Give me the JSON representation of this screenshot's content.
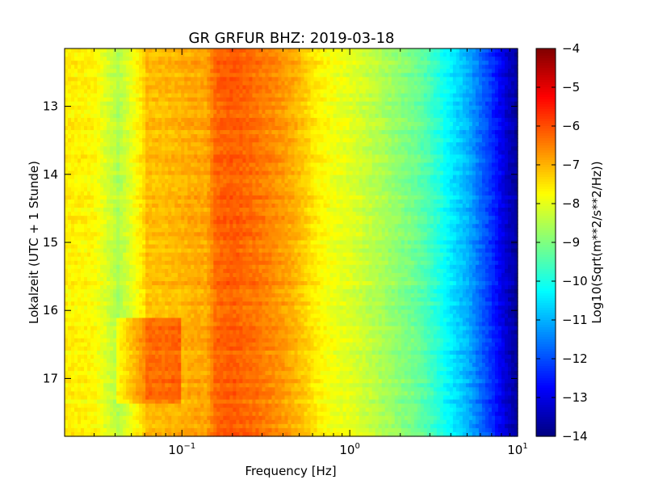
{
  "chart_data": {
    "type": "heatmap",
    "title": "GR GRFUR BHZ: 2019-03-18",
    "xlabel": "Frequency [Hz]",
    "ylabel": "Lokalzeit (UTC + 1 Stunde)",
    "x_scale": "log",
    "xlim": [
      0.02,
      10
    ],
    "x_ticks": [
      {
        "value": 0.1,
        "base": "10",
        "exp": "−1"
      },
      {
        "value": 1,
        "base": "10",
        "exp": "0"
      },
      {
        "value": 10,
        "base": "10",
        "exp": "1"
      }
    ],
    "ylim": [
      12.15,
      17.85
    ],
    "y_ticks": [
      13,
      14,
      15,
      16,
      17
    ],
    "y_inverted": true,
    "colorbar": {
      "label": "Log10(Sqrt(m**2/s**2/Hz))",
      "colormap": "jet",
      "range": [
        -14,
        -4
      ],
      "ticks": [
        -4,
        -5,
        -6,
        -7,
        -8,
        -9,
        -10,
        -11,
        -12,
        -13,
        -14
      ]
    },
    "spectrum_profile": {
      "description_values": "approximate mean PSD level (Log10 units) per frequency band",
      "freq_hz": [
        0.02,
        0.03,
        0.04,
        0.06,
        0.08,
        0.1,
        0.12,
        0.14,
        0.16,
        0.2,
        0.25,
        0.3,
        0.4,
        0.5,
        0.6,
        0.7,
        0.8,
        1.0,
        1.3,
        1.6,
        2.0,
        2.5,
        3.0,
        3.5,
        4.0,
        5.0,
        6.0,
        7.0,
        8.0,
        9.0,
        10.0
      ],
      "level": [
        -7.6,
        -7.7,
        -8.4,
        -7.1,
        -7.1,
        -7.0,
        -6.9,
        -6.9,
        -6.25,
        -6.15,
        -6.3,
        -6.45,
        -6.75,
        -7.1,
        -7.5,
        -7.75,
        -7.9,
        -8.05,
        -8.35,
        -8.6,
        -8.9,
        -9.2,
        -9.6,
        -10.0,
        -10.4,
        -11.0,
        -11.7,
        -12.3,
        -12.9,
        -13.4,
        -13.7
      ]
    },
    "time_features": [
      {
        "t_start": 16.1,
        "t_end": 17.4,
        "f_start": 0.04,
        "f_end": 0.1,
        "delta": 0.8
      },
      {
        "t_start": 12.15,
        "t_end": 17.85,
        "f_start": 0.04,
        "f_end": 0.06,
        "delta": -0.3
      }
    ]
  }
}
